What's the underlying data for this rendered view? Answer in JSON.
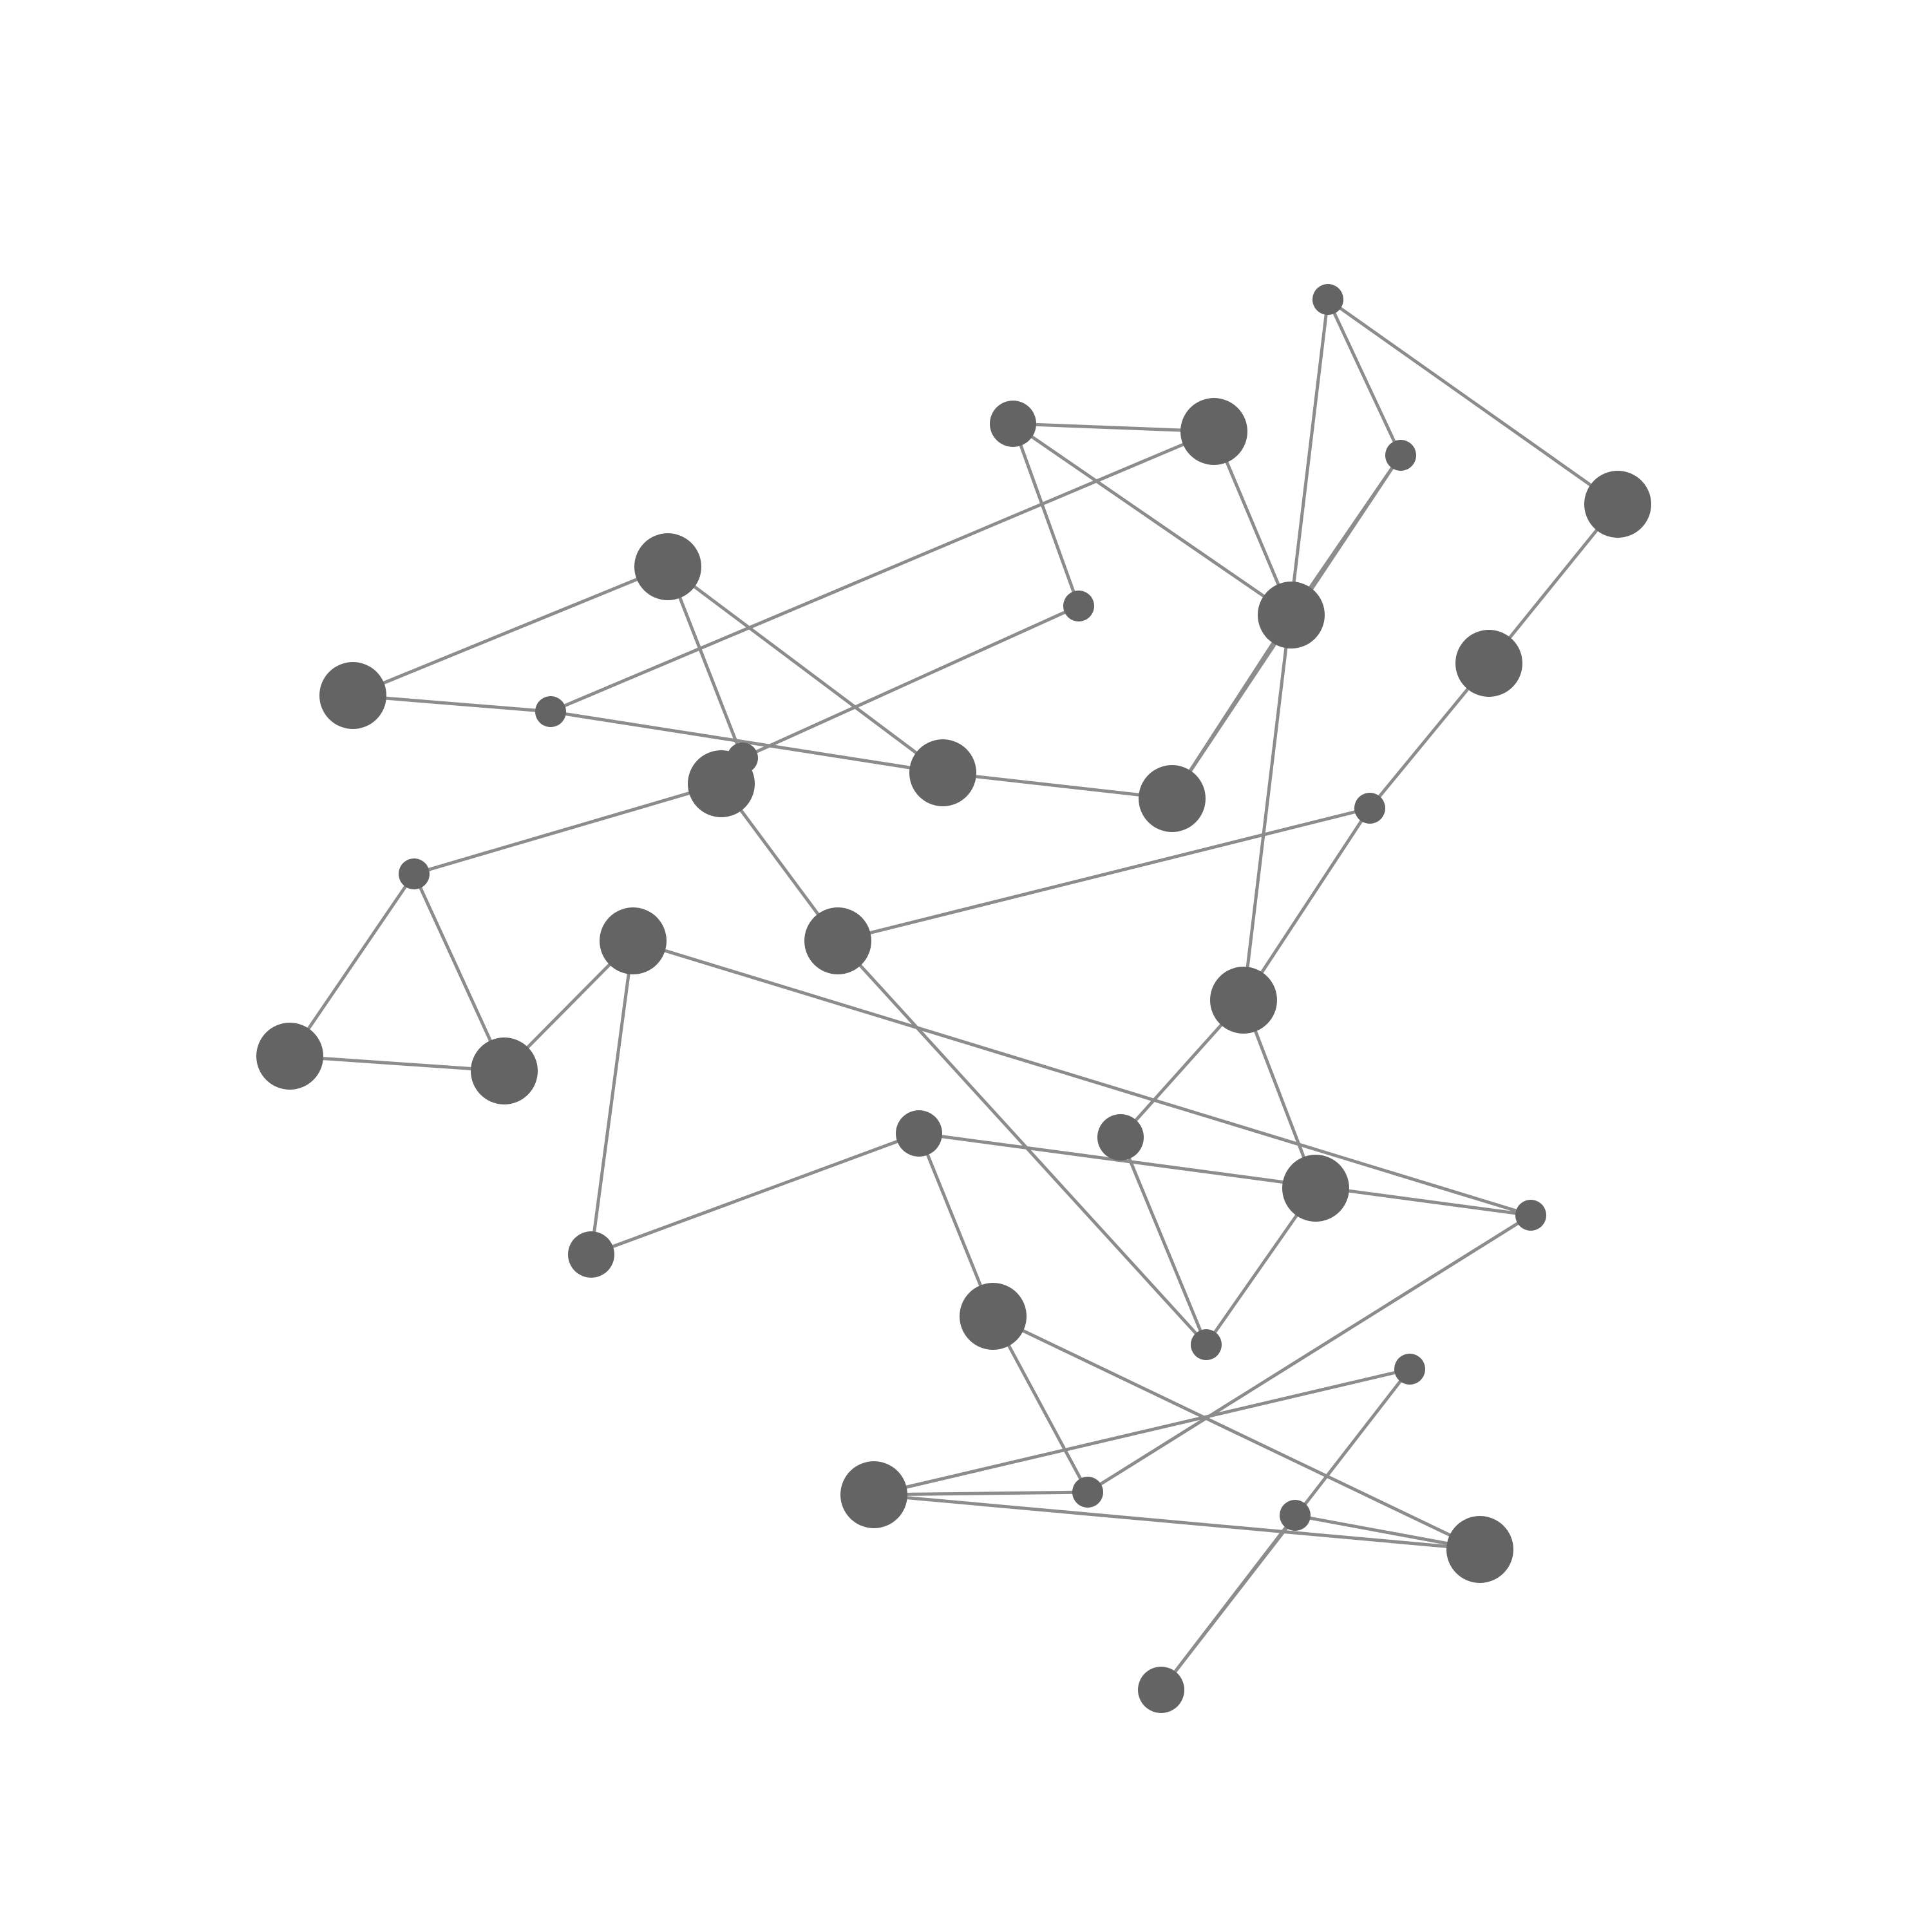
{
  "diagram": {
    "type": "network-graph",
    "title": "",
    "colors": {
      "node_fill": "#646464",
      "edge_stroke": "#8c8c8c",
      "background": "#ffffff"
    },
    "node_size_levels": [
      "small",
      "medium",
      "large"
    ],
    "nodes": [
      {
        "id": "n1",
        "size": "large"
      },
      {
        "id": "n2",
        "size": "large"
      },
      {
        "id": "n3",
        "size": "small"
      },
      {
        "id": "n4",
        "size": "small"
      },
      {
        "id": "n5",
        "size": "large"
      },
      {
        "id": "n6",
        "size": "small"
      },
      {
        "id": "n7",
        "size": "medium"
      },
      {
        "id": "n8",
        "size": "large"
      },
      {
        "id": "n9",
        "size": "large"
      },
      {
        "id": "n10",
        "size": "large"
      },
      {
        "id": "n11",
        "size": "small"
      },
      {
        "id": "n12",
        "size": "small"
      },
      {
        "id": "n13",
        "size": "large"
      },
      {
        "id": "n14",
        "size": "large"
      },
      {
        "id": "n15",
        "size": "small"
      },
      {
        "id": "n16",
        "size": "large"
      },
      {
        "id": "n17",
        "size": "large"
      },
      {
        "id": "n18",
        "size": "medium"
      },
      {
        "id": "n19",
        "size": "large"
      },
      {
        "id": "n20",
        "size": "small"
      },
      {
        "id": "n21",
        "size": "large"
      },
      {
        "id": "n22",
        "size": "small"
      },
      {
        "id": "n23",
        "size": "large"
      },
      {
        "id": "n24",
        "size": "large"
      },
      {
        "id": "n25",
        "size": "large"
      },
      {
        "id": "n26",
        "size": "medium"
      },
      {
        "id": "n27",
        "size": "medium"
      },
      {
        "id": "n28",
        "size": "small"
      },
      {
        "id": "n29",
        "size": "large"
      },
      {
        "id": "n30",
        "size": "small"
      },
      {
        "id": "n31",
        "size": "large"
      },
      {
        "id": "n32",
        "size": "large"
      },
      {
        "id": "n33",
        "size": "small"
      },
      {
        "id": "n34",
        "size": "small"
      },
      {
        "id": "n35",
        "size": "medium"
      }
    ],
    "edges": [
      [
        "n1",
        "n2"
      ],
      [
        "n1",
        "n3"
      ],
      [
        "n2",
        "n4"
      ],
      [
        "n2",
        "n5"
      ],
      [
        "n3",
        "n5"
      ],
      [
        "n4",
        "n6"
      ],
      [
        "n5",
        "n9"
      ],
      [
        "n6",
        "n7"
      ],
      [
        "n7",
        "n8"
      ],
      [
        "n3",
        "n8"
      ],
      [
        "n8",
        "n10"
      ],
      [
        "n7",
        "n10"
      ],
      [
        "n9",
        "n10"
      ],
      [
        "n10",
        "n11"
      ],
      [
        "n11",
        "n12"
      ],
      [
        "n12",
        "n13"
      ],
      [
        "n13",
        "n14"
      ],
      [
        "n14",
        "n15"
      ],
      [
        "n15",
        "n16"
      ],
      [
        "n12",
        "n16"
      ],
      [
        "n15",
        "n17"
      ],
      [
        "n16",
        "n18"
      ],
      [
        "n16",
        "n19"
      ],
      [
        "n18",
        "n20"
      ],
      [
        "n17",
        "n20"
      ],
      [
        "n19",
        "n20"
      ],
      [
        "n17",
        "n21"
      ],
      [
        "n21",
        "n22"
      ],
      [
        "n22",
        "n23"
      ],
      [
        "n23",
        "n24"
      ],
      [
        "n24",
        "n25"
      ],
      [
        "n25",
        "n26"
      ],
      [
        "n26",
        "n27"
      ],
      [
        "n27",
        "n28"
      ],
      [
        "n25",
        "n28"
      ],
      [
        "n27",
        "n29"
      ],
      [
        "n28",
        "n30"
      ],
      [
        "n29",
        "n30"
      ],
      [
        "n30",
        "n31"
      ],
      [
        "n31",
        "n32"
      ],
      [
        "n31",
        "n33"
      ],
      [
        "n32",
        "n34"
      ],
      [
        "n34",
        "n35"
      ],
      [
        "n33",
        "n35"
      ],
      [
        "n9",
        "n11"
      ],
      [
        "n22",
        "n24"
      ],
      [
        "n29",
        "n32"
      ]
    ]
  }
}
